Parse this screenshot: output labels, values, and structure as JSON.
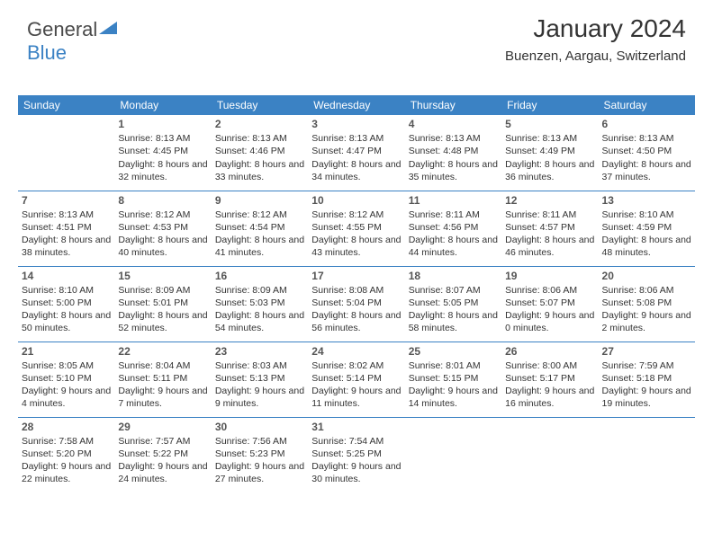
{
  "brand": {
    "part1": "General",
    "part2": "Blue"
  },
  "header": {
    "title": "January 2024",
    "location": "Buenzen, Aargau, Switzerland"
  },
  "colors": {
    "header_bg": "#3b82c4",
    "header_text": "#ffffff",
    "page_bg": "#ffffff",
    "text": "#333333",
    "rule": "#3b82c4"
  },
  "calendar": {
    "day_names": [
      "Sunday",
      "Monday",
      "Tuesday",
      "Wednesday",
      "Thursday",
      "Friday",
      "Saturday"
    ],
    "start_offset": 1,
    "days": [
      {
        "n": 1,
        "sr": "8:13 AM",
        "ss": "4:45 PM",
        "dh": 8,
        "dm": 32
      },
      {
        "n": 2,
        "sr": "8:13 AM",
        "ss": "4:46 PM",
        "dh": 8,
        "dm": 33
      },
      {
        "n": 3,
        "sr": "8:13 AM",
        "ss": "4:47 PM",
        "dh": 8,
        "dm": 34
      },
      {
        "n": 4,
        "sr": "8:13 AM",
        "ss": "4:48 PM",
        "dh": 8,
        "dm": 35
      },
      {
        "n": 5,
        "sr": "8:13 AM",
        "ss": "4:49 PM",
        "dh": 8,
        "dm": 36
      },
      {
        "n": 6,
        "sr": "8:13 AM",
        "ss": "4:50 PM",
        "dh": 8,
        "dm": 37
      },
      {
        "n": 7,
        "sr": "8:13 AM",
        "ss": "4:51 PM",
        "dh": 8,
        "dm": 38
      },
      {
        "n": 8,
        "sr": "8:12 AM",
        "ss": "4:53 PM",
        "dh": 8,
        "dm": 40
      },
      {
        "n": 9,
        "sr": "8:12 AM",
        "ss": "4:54 PM",
        "dh": 8,
        "dm": 41
      },
      {
        "n": 10,
        "sr": "8:12 AM",
        "ss": "4:55 PM",
        "dh": 8,
        "dm": 43
      },
      {
        "n": 11,
        "sr": "8:11 AM",
        "ss": "4:56 PM",
        "dh": 8,
        "dm": 44
      },
      {
        "n": 12,
        "sr": "8:11 AM",
        "ss": "4:57 PM",
        "dh": 8,
        "dm": 46
      },
      {
        "n": 13,
        "sr": "8:10 AM",
        "ss": "4:59 PM",
        "dh": 8,
        "dm": 48
      },
      {
        "n": 14,
        "sr": "8:10 AM",
        "ss": "5:00 PM",
        "dh": 8,
        "dm": 50
      },
      {
        "n": 15,
        "sr": "8:09 AM",
        "ss": "5:01 PM",
        "dh": 8,
        "dm": 52
      },
      {
        "n": 16,
        "sr": "8:09 AM",
        "ss": "5:03 PM",
        "dh": 8,
        "dm": 54
      },
      {
        "n": 17,
        "sr": "8:08 AM",
        "ss": "5:04 PM",
        "dh": 8,
        "dm": 56
      },
      {
        "n": 18,
        "sr": "8:07 AM",
        "ss": "5:05 PM",
        "dh": 8,
        "dm": 58
      },
      {
        "n": 19,
        "sr": "8:06 AM",
        "ss": "5:07 PM",
        "dh": 9,
        "dm": 0
      },
      {
        "n": 20,
        "sr": "8:06 AM",
        "ss": "5:08 PM",
        "dh": 9,
        "dm": 2
      },
      {
        "n": 21,
        "sr": "8:05 AM",
        "ss": "5:10 PM",
        "dh": 9,
        "dm": 4
      },
      {
        "n": 22,
        "sr": "8:04 AM",
        "ss": "5:11 PM",
        "dh": 9,
        "dm": 7
      },
      {
        "n": 23,
        "sr": "8:03 AM",
        "ss": "5:13 PM",
        "dh": 9,
        "dm": 9
      },
      {
        "n": 24,
        "sr": "8:02 AM",
        "ss": "5:14 PM",
        "dh": 9,
        "dm": 11
      },
      {
        "n": 25,
        "sr": "8:01 AM",
        "ss": "5:15 PM",
        "dh": 9,
        "dm": 14
      },
      {
        "n": 26,
        "sr": "8:00 AM",
        "ss": "5:17 PM",
        "dh": 9,
        "dm": 16
      },
      {
        "n": 27,
        "sr": "7:59 AM",
        "ss": "5:18 PM",
        "dh": 9,
        "dm": 19
      },
      {
        "n": 28,
        "sr": "7:58 AM",
        "ss": "5:20 PM",
        "dh": 9,
        "dm": 22
      },
      {
        "n": 29,
        "sr": "7:57 AM",
        "ss": "5:22 PM",
        "dh": 9,
        "dm": 24
      },
      {
        "n": 30,
        "sr": "7:56 AM",
        "ss": "5:23 PM",
        "dh": 9,
        "dm": 27
      },
      {
        "n": 31,
        "sr": "7:54 AM",
        "ss": "5:25 PM",
        "dh": 9,
        "dm": 30
      }
    ]
  }
}
